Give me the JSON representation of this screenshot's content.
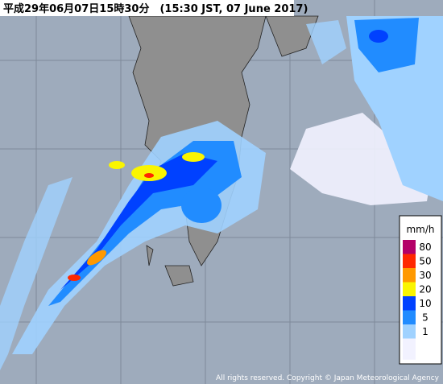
{
  "header": {
    "title": "平成29年06月07日15時30分　(15:30 JST, 07 June 2017)"
  },
  "legend": {
    "unit": "mm/h",
    "items": [
      {
        "label": "80",
        "color": "#b40068"
      },
      {
        "label": "50",
        "color": "#ff2800"
      },
      {
        "label": "30",
        "color": "#ff9900"
      },
      {
        "label": "20",
        "color": "#faf500"
      },
      {
        "label": "10",
        "color": "#0041ff"
      },
      {
        "label": "5",
        "color": "#218cff"
      },
      {
        "label": "1",
        "color": "#a0d2ff"
      }
    ],
    "bottom_color": "#f2f2ff"
  },
  "footer": {
    "copyright": "All rights reserved. Copyright © Japan Meteorological Agency"
  }
}
